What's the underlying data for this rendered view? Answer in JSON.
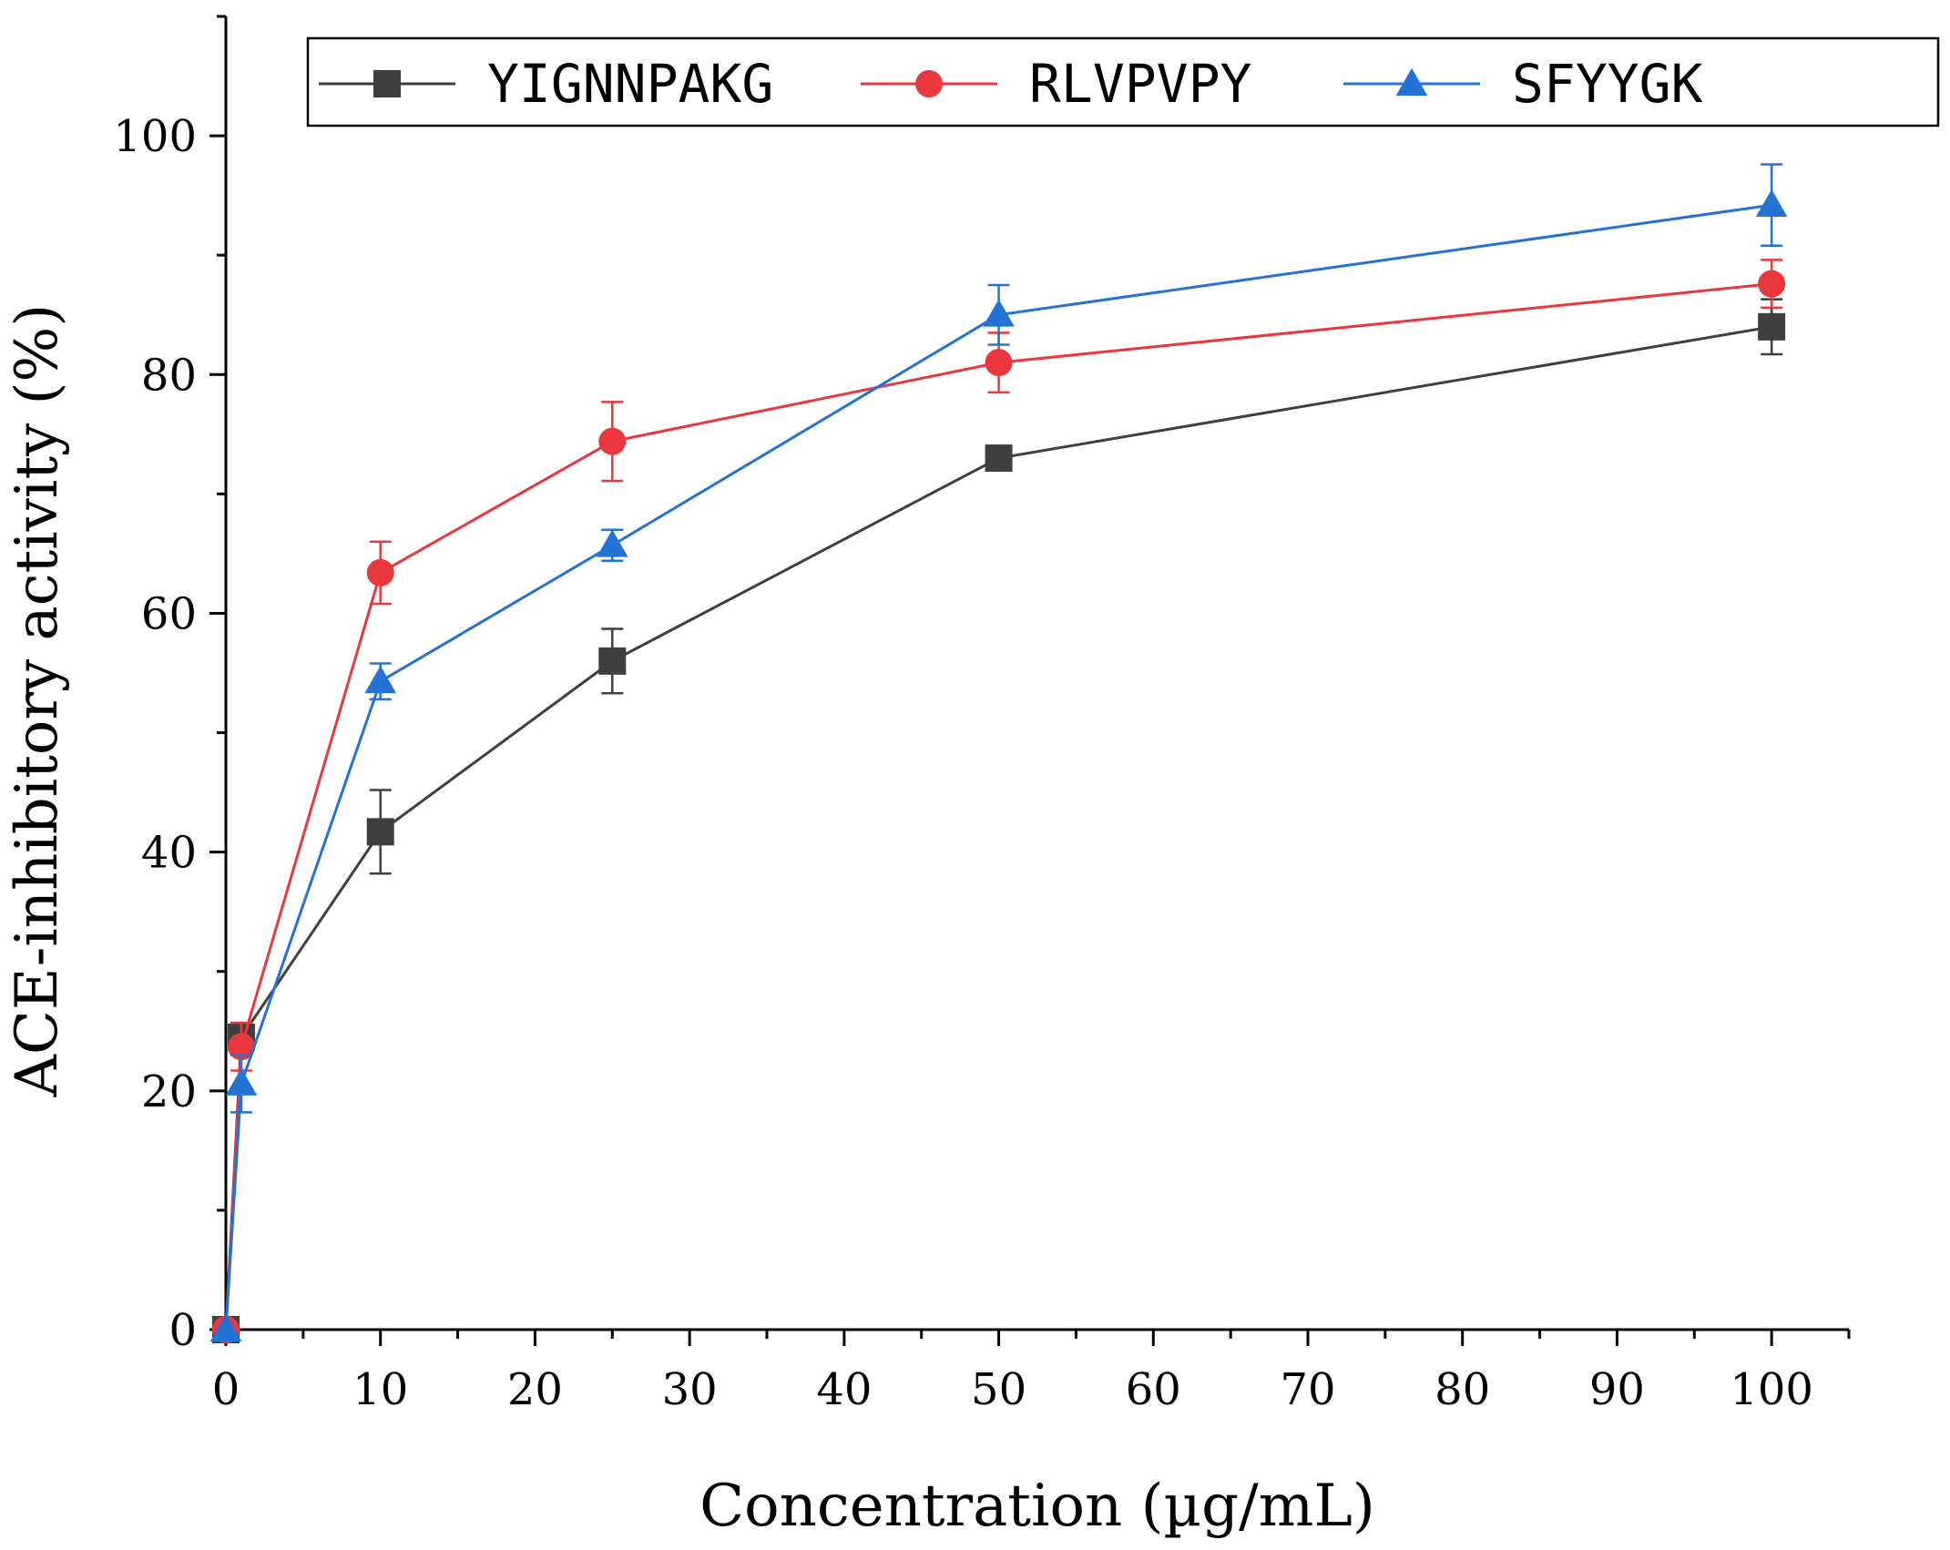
{
  "chart_data": {
    "type": "line",
    "title": "",
    "xlabel": "Concentration (µg/mL)",
    "ylabel": "ACE-inhibitory activity (%)",
    "xlim": [
      0,
      105
    ],
    "ylim": [
      0,
      110
    ],
    "x_ticks": [
      0,
      10,
      20,
      30,
      40,
      50,
      60,
      70,
      80,
      90,
      100
    ],
    "x_tick_labels": [
      "0",
      "10",
      "20",
      "30",
      "40",
      "50",
      "60",
      "70",
      "80",
      "90",
      "100"
    ],
    "y_ticks": [
      0,
      20,
      40,
      60,
      80,
      100
    ],
    "y_tick_labels": [
      "0",
      "20",
      "40",
      "60",
      "80",
      "100"
    ],
    "grid": false,
    "legend_position": "top",
    "series": [
      {
        "name": "YIGNNPAKG",
        "color": "#3f3f3f",
        "marker": "square",
        "x": [
          0,
          1,
          10,
          25,
          50,
          100
        ],
        "values": [
          0,
          24.5,
          41.7,
          56.0,
          73.0,
          84.0
        ],
        "errors": [
          0,
          1.2,
          3.5,
          2.7,
          0.8,
          2.3
        ]
      },
      {
        "name": "RLVPVPY",
        "color": "#e8383d",
        "marker": "circle",
        "x": [
          0,
          1,
          10,
          25,
          50,
          100
        ],
        "values": [
          0,
          23.7,
          63.4,
          74.4,
          81.0,
          87.6
        ],
        "errors": [
          0,
          2.0,
          2.6,
          3.3,
          2.5,
          2.0
        ]
      },
      {
        "name": "SFYYGK",
        "color": "#2372d6",
        "marker": "triangle",
        "x": [
          0,
          1,
          10,
          25,
          50,
          100
        ],
        "values": [
          0,
          20.6,
          54.3,
          65.7,
          85.0,
          94.2
        ],
        "errors": [
          0,
          2.4,
          1.5,
          1.3,
          2.5,
          3.4
        ]
      }
    ]
  }
}
